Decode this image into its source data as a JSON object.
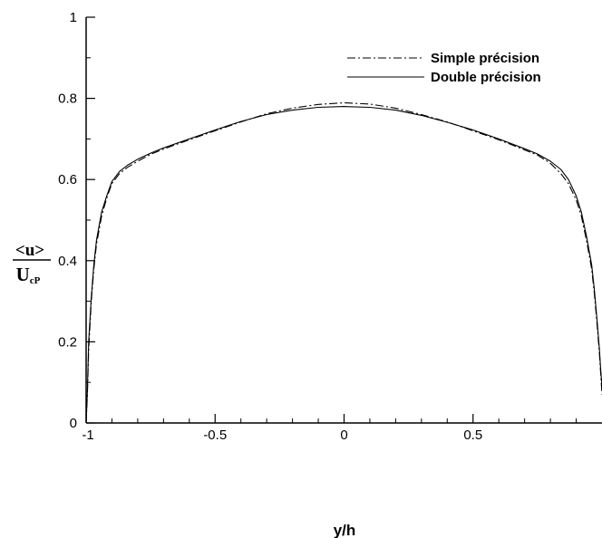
{
  "chart_data": {
    "type": "line",
    "title": "",
    "xlabel": "y/h",
    "ylabel": {
      "numerator": "<u>",
      "denominator_main": "U",
      "denominator_sub": "cP"
    },
    "xlim": [
      -1,
      1
    ],
    "ylim": [
      0,
      1
    ],
    "x_ticks": [
      -1,
      -0.5,
      0,
      0.5
    ],
    "x_tick_labels": [
      "-1",
      "-0.5",
      "0",
      "0.5"
    ],
    "y_ticks": [
      0,
      0.2,
      0.4,
      0.6,
      0.8,
      1
    ],
    "y_tick_labels": [
      "0",
      "0.2",
      "0.4",
      "0.6",
      "0.8",
      "1"
    ],
    "grid": false,
    "legend_position": "top-right",
    "series": [
      {
        "name": "Simple précision",
        "line_style": "dashdot",
        "color": "#000000",
        "x": [
          -1.0,
          -0.995,
          -0.99,
          -0.98,
          -0.97,
          -0.96,
          -0.94,
          -0.92,
          -0.9,
          -0.87,
          -0.84,
          -0.8,
          -0.75,
          -0.7,
          -0.6,
          -0.5,
          -0.4,
          -0.3,
          -0.2,
          -0.1,
          0.0,
          0.1,
          0.2,
          0.3,
          0.4,
          0.5,
          0.6,
          0.7,
          0.75,
          0.8,
          0.84,
          0.87,
          0.9,
          0.92,
          0.94,
          0.96,
          0.97,
          0.98,
          0.99,
          0.995,
          1.0
        ],
        "y": [
          0.0,
          0.07,
          0.18,
          0.3,
          0.38,
          0.44,
          0.51,
          0.555,
          0.59,
          0.615,
          0.63,
          0.645,
          0.662,
          0.675,
          0.698,
          0.72,
          0.742,
          0.762,
          0.776,
          0.785,
          0.789,
          0.786,
          0.776,
          0.76,
          0.742,
          0.72,
          0.698,
          0.673,
          0.66,
          0.64,
          0.615,
          0.59,
          0.55,
          0.51,
          0.45,
          0.38,
          0.32,
          0.25,
          0.17,
          0.12,
          0.07
        ]
      },
      {
        "name": "Double précision",
        "line_style": "solid",
        "color": "#000000",
        "x": [
          -1.0,
          -0.995,
          -0.99,
          -0.98,
          -0.97,
          -0.96,
          -0.94,
          -0.92,
          -0.9,
          -0.87,
          -0.84,
          -0.8,
          -0.75,
          -0.7,
          -0.6,
          -0.5,
          -0.4,
          -0.3,
          -0.2,
          -0.1,
          0.0,
          0.1,
          0.2,
          0.3,
          0.4,
          0.5,
          0.6,
          0.7,
          0.75,
          0.8,
          0.84,
          0.87,
          0.9,
          0.92,
          0.94,
          0.96,
          0.97,
          0.98,
          0.99,
          0.995,
          1.0
        ],
        "y": [
          0.0,
          0.08,
          0.2,
          0.31,
          0.39,
          0.45,
          0.52,
          0.56,
          0.595,
          0.62,
          0.635,
          0.65,
          0.665,
          0.678,
          0.7,
          0.722,
          0.743,
          0.76,
          0.771,
          0.778,
          0.78,
          0.778,
          0.771,
          0.758,
          0.741,
          0.722,
          0.7,
          0.676,
          0.663,
          0.645,
          0.625,
          0.6,
          0.56,
          0.52,
          0.46,
          0.39,
          0.33,
          0.26,
          0.18,
          0.13,
          0.09
        ]
      }
    ]
  }
}
